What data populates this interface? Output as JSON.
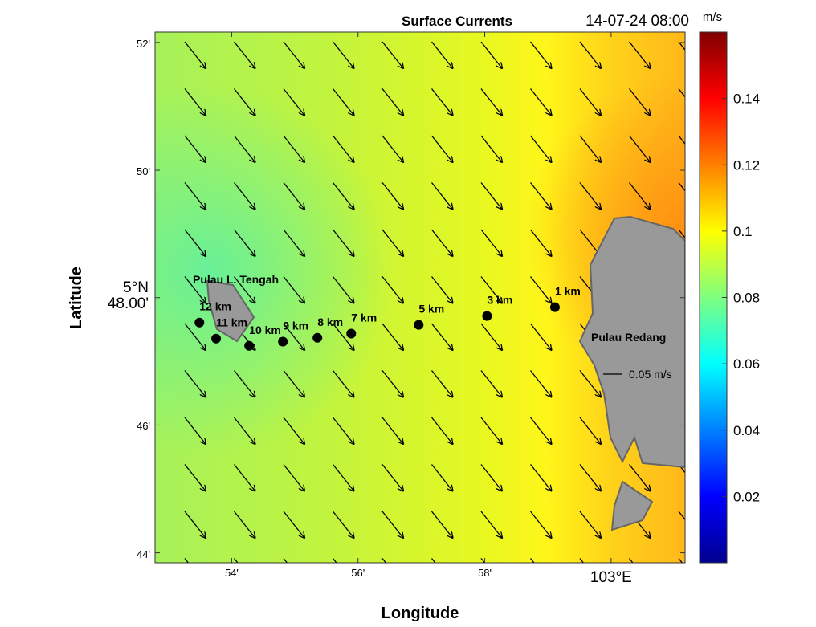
{
  "map": {
    "title": "Surface Currents",
    "timestamp": "14-07-24 08:00",
    "xlabel": "Longitude",
    "ylabel": "Latitude",
    "xlim": [
      102.8798,
      103.0195
    ],
    "ylim": [
      5.7307,
      5.8694
    ],
    "xticks": [
      {
        "value": 102.9,
        "label": "54'"
      },
      {
        "value": 102.9333,
        "label": "56'"
      },
      {
        "value": 102.9667,
        "label": "58'"
      },
      {
        "value": 103.0,
        "label": "103°E"
      }
    ],
    "yticks": [
      {
        "value": 5.7333,
        "label": "44'"
      },
      {
        "value": 5.7667,
        "label": "46'"
      },
      {
        "value": 5.8,
        "label": "5°N 48.00'"
      },
      {
        "value": 5.8333,
        "label": "50'"
      },
      {
        "value": 5.8667,
        "label": "52'"
      }
    ],
    "colorbar": {
      "unit": "m/s",
      "clim": [
        0,
        0.16
      ],
      "ticks": [
        0.02,
        0.04,
        0.06,
        0.08,
        0.1,
        0.12,
        0.14
      ]
    },
    "stations": [
      {
        "label": "12 km",
        "lon": 102.8915,
        "lat": 5.7935
      },
      {
        "label": "11 km",
        "lon": 102.8959,
        "lat": 5.7893
      },
      {
        "label": "10 km",
        "lon": 102.9046,
        "lat": 5.7874
      },
      {
        "label": "9 km",
        "lon": 102.9135,
        "lat": 5.7885
      },
      {
        "label": "8 km",
        "lon": 102.9226,
        "lat": 5.7895
      },
      {
        "label": "7 km",
        "lon": 102.9315,
        "lat": 5.7906
      },
      {
        "label": "5 km",
        "lon": 102.9493,
        "lat": 5.7929
      },
      {
        "label": "3 km",
        "lon": 102.9673,
        "lat": 5.7952
      },
      {
        "label": "1 km",
        "lon": 102.9852,
        "lat": 5.7975
      }
    ],
    "islands": [
      "Pulau L. Tengah",
      "Pulau Redang"
    ],
    "scale_label": "0.05 m/s"
  }
}
